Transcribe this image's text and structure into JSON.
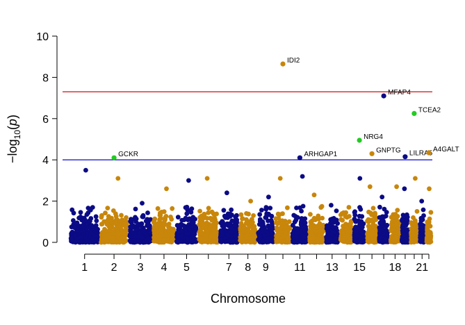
{
  "chart_data": {
    "type": "scatter",
    "subtype": "manhattan",
    "title": "",
    "xlabel": "Chromosome",
    "ylabel": "−log₁₀(p)",
    "ylabel_parts": {
      "prefix": "−log",
      "subscript": "10",
      "open": "(",
      "var": "p",
      "close": ")"
    },
    "ylim": [
      0,
      10
    ],
    "yticks": [
      0,
      2,
      4,
      6,
      8,
      10
    ],
    "grid": false,
    "legend": "none",
    "colors": {
      "odd": "#0b0b86",
      "even": "#c8860a",
      "hit": "#22cc22",
      "genome_wide": "#d22222",
      "suggestive": "#1f1fcf"
    },
    "thresholds": {
      "genome_wide": 7.3,
      "suggestive": 4.0
    },
    "chromosome_tick_labels": [
      "1",
      "2",
      "3",
      "4",
      "5",
      "7",
      "8",
      "9",
      "11",
      "13",
      "15",
      "18",
      "21"
    ],
    "chromosome_tick_positions": [
      1,
      2,
      3,
      4,
      5,
      7,
      8,
      9,
      11,
      13,
      15,
      18,
      21
    ],
    "chromosomes": [
      {
        "chr": 1,
        "peak": 3.5
      },
      {
        "chr": 2,
        "peak": 3.1
      },
      {
        "chr": 3,
        "peak": 1.9
      },
      {
        "chr": 4,
        "peak": 2.6
      },
      {
        "chr": 5,
        "peak": 3.0
      },
      {
        "chr": 6,
        "peak": 3.1
      },
      {
        "chr": 7,
        "peak": 2.4
      },
      {
        "chr": 8,
        "peak": 2.0
      },
      {
        "chr": 9,
        "peak": 2.2
      },
      {
        "chr": 10,
        "peak": 3.1
      },
      {
        "chr": 11,
        "peak": 3.2
      },
      {
        "chr": 12,
        "peak": 2.3
      },
      {
        "chr": 13,
        "peak": 1.8
      },
      {
        "chr": 14,
        "peak": 1.7
      },
      {
        "chr": 15,
        "peak": 3.1
      },
      {
        "chr": 16,
        "peak": 2.7
      },
      {
        "chr": 17,
        "peak": 2.2
      },
      {
        "chr": 18,
        "peak": 2.7
      },
      {
        "chr": 19,
        "peak": 2.6
      },
      {
        "chr": 20,
        "peak": 3.1
      },
      {
        "chr": 21,
        "peak": 2.0
      },
      {
        "chr": 22,
        "peak": 2.6
      }
    ],
    "annotated_hits": [
      {
        "gene": "GCKR",
        "chr": 2,
        "y": 4.1,
        "color": "#22cc22"
      },
      {
        "gene": "IDI2",
        "chr": 10,
        "y": 8.65,
        "color": "#c8860a"
      },
      {
        "gene": "ARHGAP1",
        "chr": 11,
        "y": 4.1,
        "color": "#0b0b86"
      },
      {
        "gene": "MFAP4",
        "chr": 17,
        "y": 7.1,
        "color": "#0b0b86"
      },
      {
        "gene": "NRG4",
        "chr": 15,
        "y": 4.95,
        "color": "#22cc22"
      },
      {
        "gene": "GNPTG",
        "chr": 16,
        "y": 4.3,
        "color": "#c8860a"
      },
      {
        "gene": "TCEA2",
        "chr": 20,
        "y": 6.25,
        "color": "#22cc22"
      },
      {
        "gene": "LILRA5",
        "chr": 19,
        "y": 4.15,
        "color": "#0b0b86"
      },
      {
        "gene": "A4GALT",
        "chr": 22,
        "y": 4.35,
        "color": "#c8860a"
      }
    ]
  }
}
